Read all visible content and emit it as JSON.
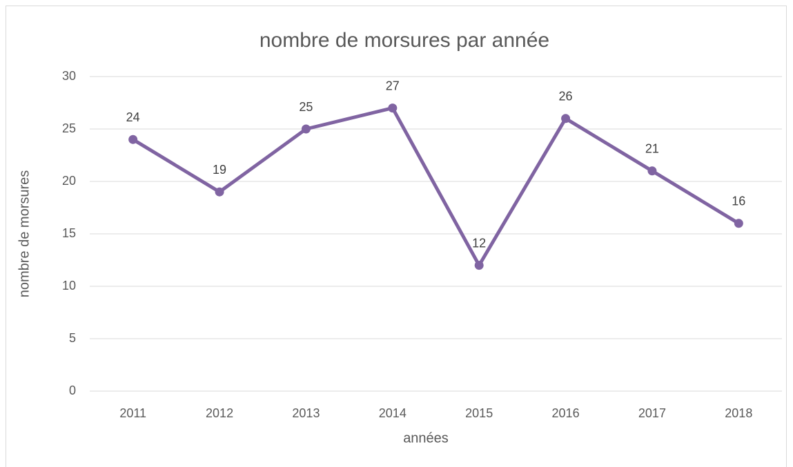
{
  "chart_data": {
    "type": "line",
    "title": "nombre de morsures par année",
    "x_label": "années",
    "y_label": "nombre de morsures",
    "categories": [
      "2011",
      "2012",
      "2013",
      "2014",
      "2015",
      "2016",
      "2017",
      "2018"
    ],
    "series": [
      {
        "name": "nombre de morsures",
        "color": "#8064a2",
        "values": [
          24,
          19,
          25,
          27,
          12,
          26,
          21,
          16
        ]
      }
    ],
    "ylim": [
      0,
      30
    ],
    "yticks": [
      0,
      5,
      10,
      15,
      20,
      25,
      30
    ],
    "grid": true,
    "legend": false,
    "data_labels": true
  }
}
